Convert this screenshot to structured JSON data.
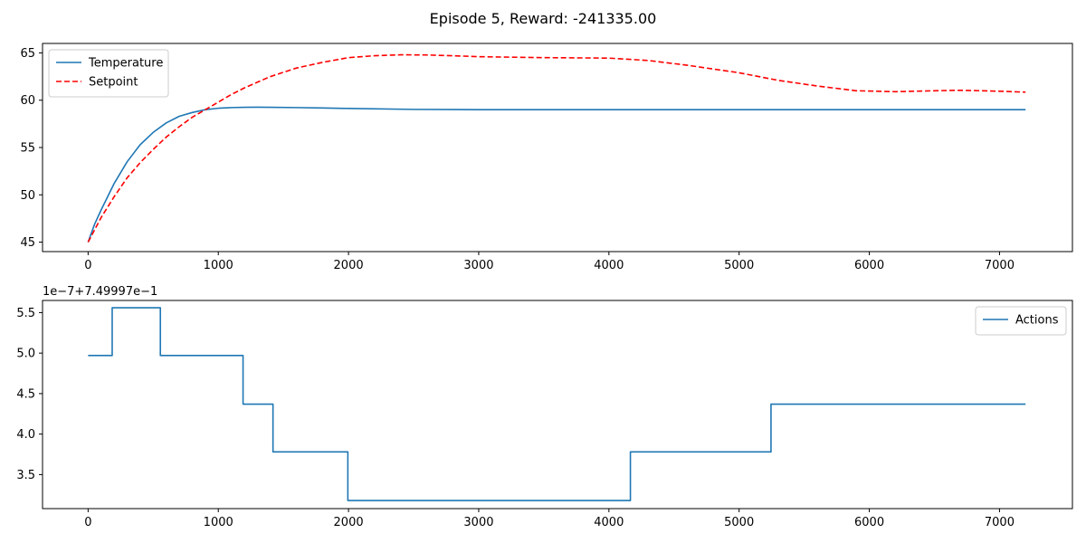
{
  "figure": {
    "title": "Episode 5, Reward: -241335.00"
  },
  "chart_data": [
    {
      "type": "line",
      "xlim": [
        -350,
        7560
      ],
      "ylim": [
        44,
        66
      ],
      "xticks": [
        0,
        1000,
        2000,
        3000,
        4000,
        5000,
        6000,
        7000
      ],
      "xtick_labels": [
        "0",
        "1000",
        "2000",
        "3000",
        "4000",
        "5000",
        "6000",
        "7000"
      ],
      "yticks": [
        45,
        50,
        55,
        60,
        65
      ],
      "ytick_labels": [
        "45",
        "50",
        "55",
        "60",
        "65"
      ],
      "grid": false,
      "legend_position": "top-left",
      "series": [
        {
          "name": "Temperature",
          "color": "#1f77b4",
          "style": "solid",
          "x": [
            0,
            50,
            100,
            200,
            300,
            400,
            500,
            600,
            700,
            800,
            900,
            1000,
            1100,
            1200,
            1300,
            1400,
            1600,
            1800,
            2000,
            2500,
            3000,
            4000,
            5000,
            6000,
            7200
          ],
          "y": [
            45.0,
            46.9,
            48.4,
            51.2,
            53.5,
            55.3,
            56.6,
            57.6,
            58.3,
            58.7,
            59.0,
            59.15,
            59.22,
            59.25,
            59.26,
            59.25,
            59.22,
            59.18,
            59.13,
            59.03,
            59.0,
            59.0,
            59.0,
            59.0,
            59.0
          ]
        },
        {
          "name": "Setpoint",
          "color": "#ff0000",
          "style": "dashed",
          "x": [
            0,
            100,
            200,
            300,
            400,
            500,
            600,
            700,
            800,
            900,
            1000,
            1100,
            1200,
            1400,
            1600,
            1800,
            2000,
            2200,
            2400,
            2600,
            2800,
            3000,
            3500,
            4000,
            4300,
            4600,
            5000,
            5300,
            5600,
            5900,
            6200,
            6500,
            6700,
            7000,
            7200
          ],
          "y": [
            45.0,
            47.6,
            49.8,
            51.8,
            53.4,
            54.8,
            56.1,
            57.2,
            58.2,
            59.0,
            59.8,
            60.6,
            61.3,
            62.5,
            63.4,
            64.0,
            64.5,
            64.7,
            64.8,
            64.78,
            64.7,
            64.6,
            64.5,
            64.45,
            64.2,
            63.7,
            62.9,
            62.1,
            61.5,
            61.0,
            60.9,
            61.0,
            61.05,
            60.95,
            60.85
          ]
        }
      ]
    },
    {
      "type": "line",
      "xlim": [
        -350,
        7560
      ],
      "ylim": [
        3.08,
        5.65
      ],
      "offset_label": "1e−7+7.49997e−1",
      "xticks": [
        0,
        1000,
        2000,
        3000,
        4000,
        5000,
        6000,
        7000
      ],
      "xtick_labels": [
        "0",
        "1000",
        "2000",
        "3000",
        "4000",
        "5000",
        "6000",
        "7000"
      ],
      "yticks": [
        3.5,
        4.0,
        4.5,
        5.0,
        5.5
      ],
      "ytick_labels": [
        "3.5",
        "4.0",
        "4.5",
        "5.0",
        "5.5"
      ],
      "grid": false,
      "legend_position": "top-right",
      "series": [
        {
          "name": "Actions",
          "color": "#1f77b4",
          "style": "step",
          "x": [
            0,
            185,
            185,
            555,
            555,
            1190,
            1190,
            1420,
            1420,
            1995,
            1995,
            4165,
            4165,
            5245,
            5245,
            7200
          ],
          "y": [
            4.97,
            4.97,
            5.56,
            5.56,
            4.97,
            4.97,
            4.37,
            4.37,
            3.78,
            3.78,
            3.18,
            3.18,
            3.78,
            3.78,
            4.37,
            4.37
          ]
        }
      ]
    }
  ]
}
